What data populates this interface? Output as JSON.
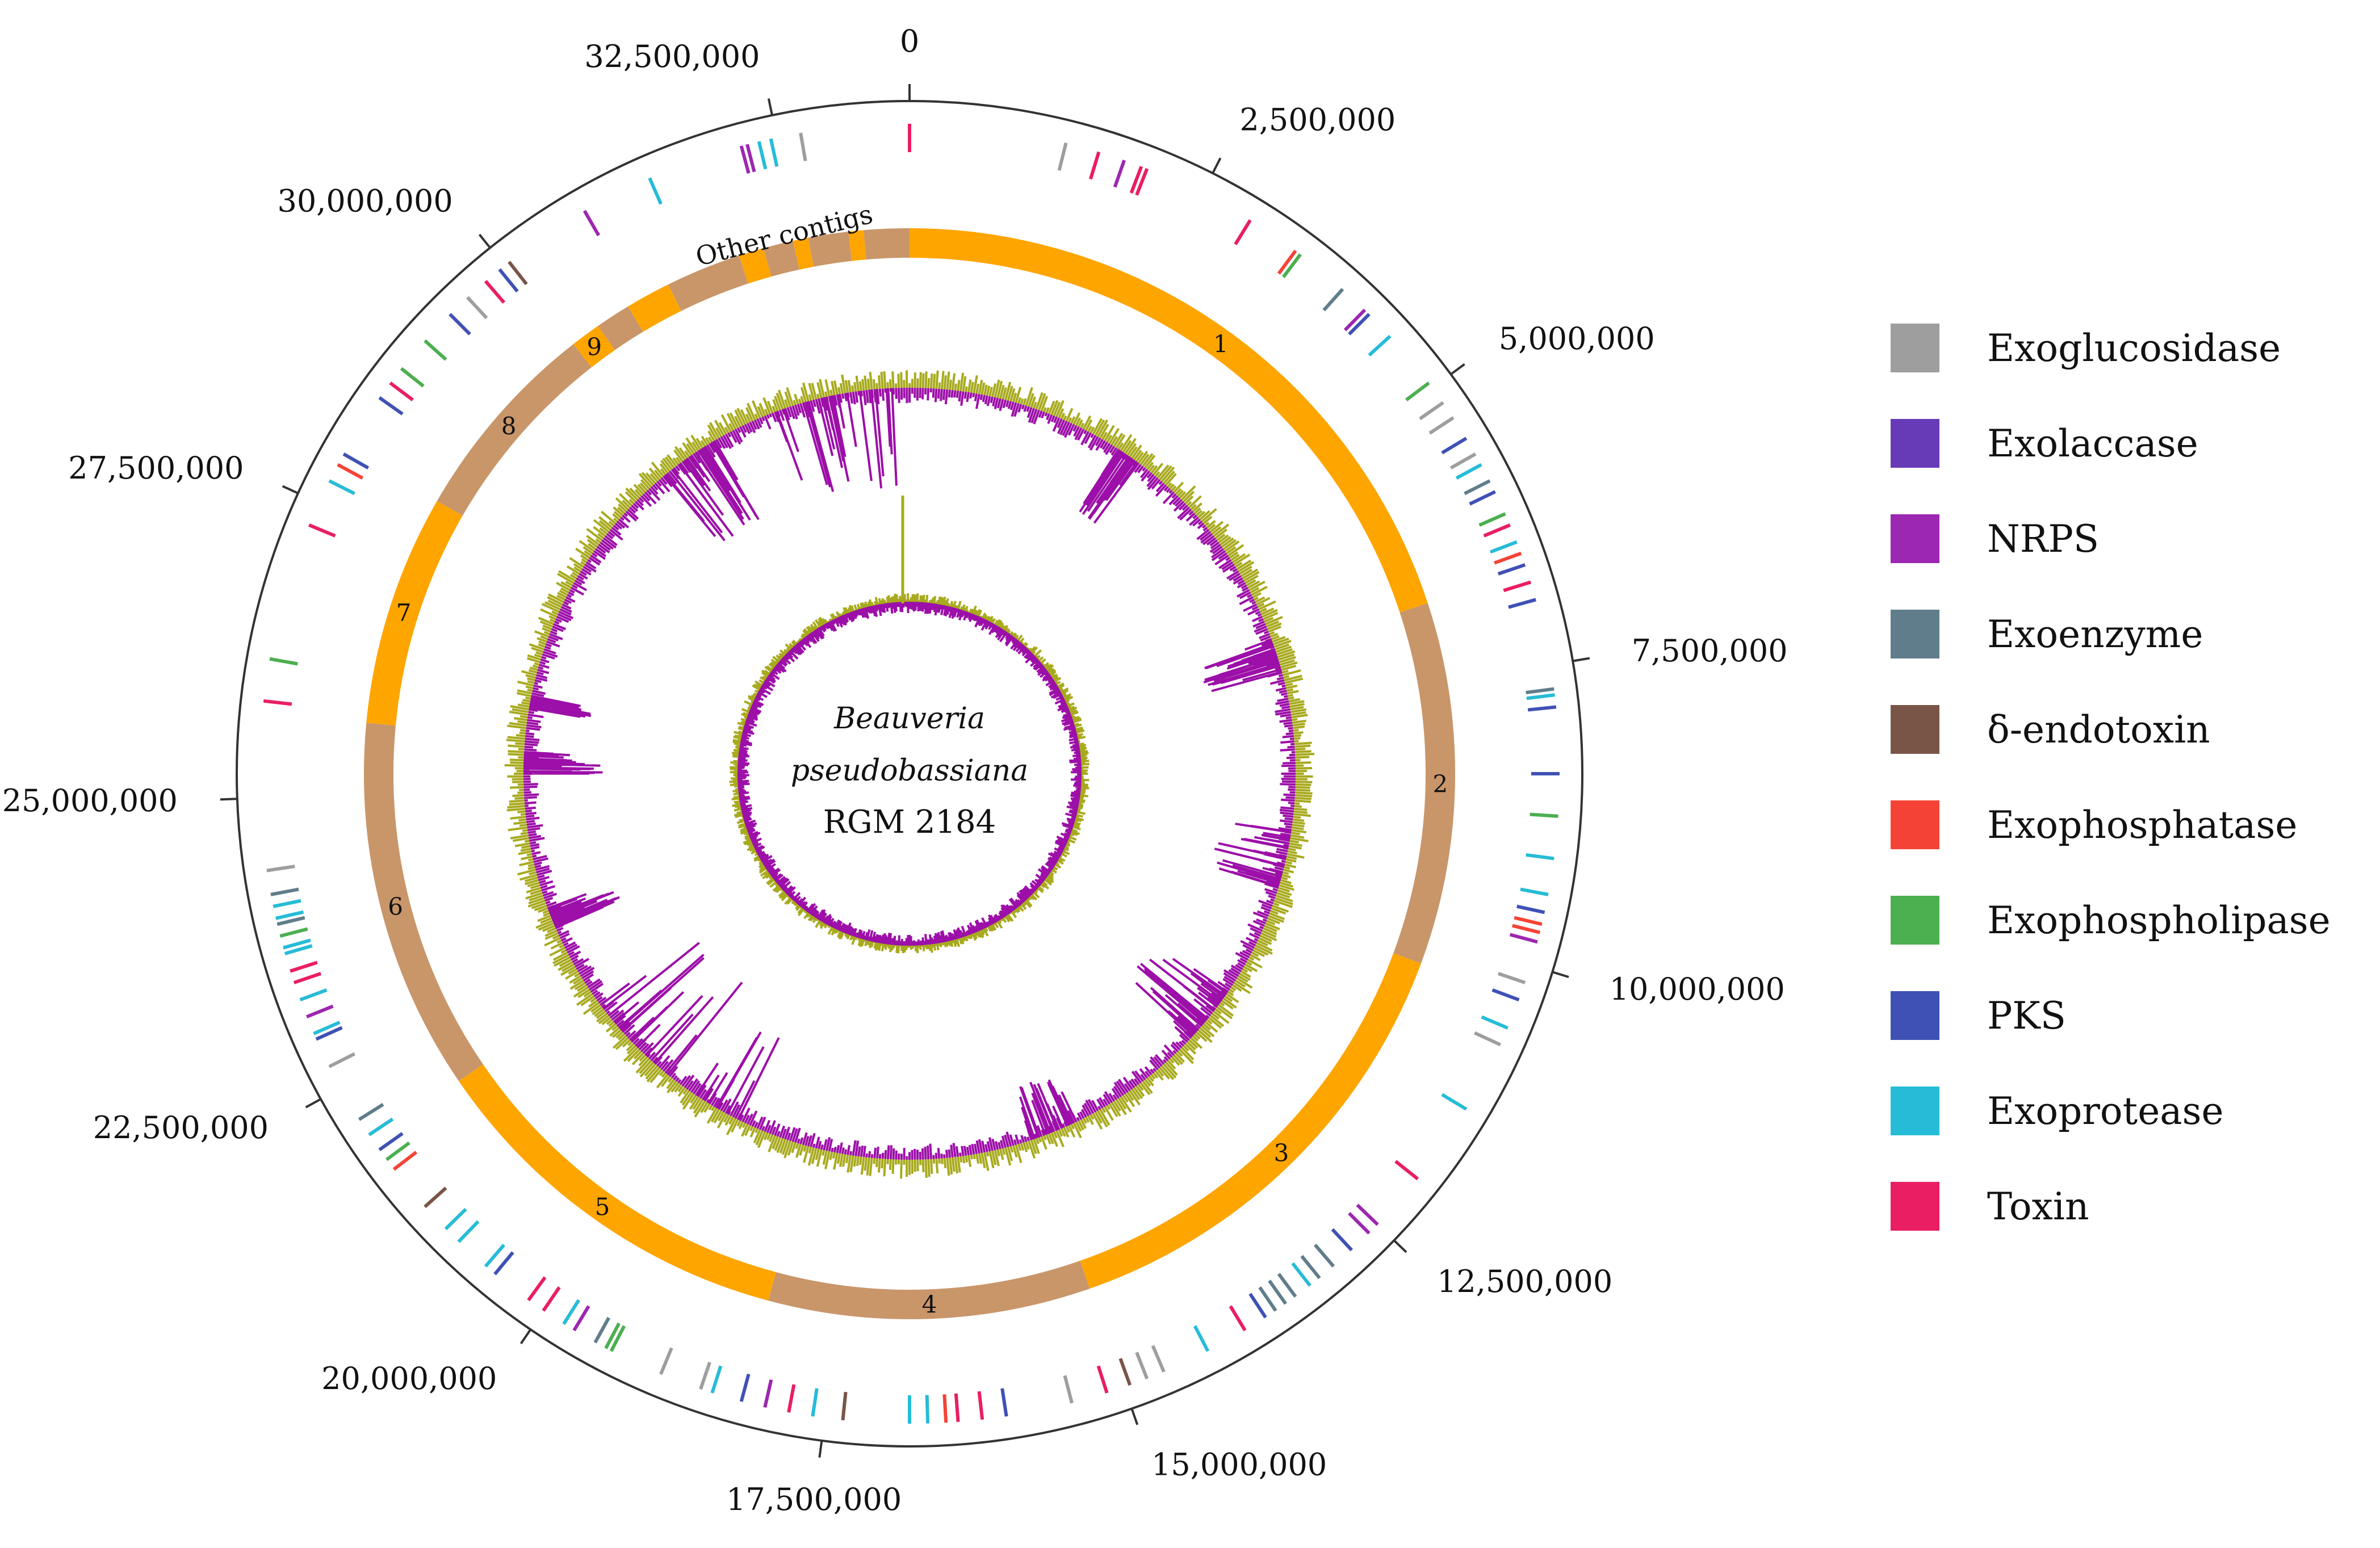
{
  "title": {
    "organism": "Beauveria",
    "species": "pseudobassiana",
    "strain": "RGM 2184"
  },
  "genome_length": 33600000,
  "ticks": [
    "0",
    "2,500,000",
    "5,000,000",
    "7,500,000",
    "10,000,000",
    "12,500,000",
    "15,000,000",
    "17,500,000",
    "20,000,000",
    "22,500,000",
    "25,000,000",
    "27,500,000",
    "30,000,000",
    "32,500,000"
  ],
  "tick_values": [
    0,
    2500000,
    5000000,
    7500000,
    10000000,
    12500000,
    15000000,
    17500000,
    20000000,
    22500000,
    25000000,
    27500000,
    30000000,
    32500000
  ],
  "other_contigs_label": "Other contigs",
  "contigs": [
    {
      "label": "1",
      "start": 0,
      "end": 6700000,
      "color": "#FFA500"
    },
    {
      "label": "2",
      "start": 6700000,
      "end": 10300000,
      "color": "#C9966A"
    },
    {
      "label": "3",
      "start": 10300000,
      "end": 15000000,
      "color": "#FFA500"
    },
    {
      "label": "4",
      "start": 15000000,
      "end": 18200000,
      "color": "#C9966A"
    },
    {
      "label": "5",
      "start": 18200000,
      "end": 22000000,
      "color": "#FFA500"
    },
    {
      "label": "6",
      "start": 22000000,
      "end": 25700000,
      "color": "#C9966A"
    },
    {
      "label": "7",
      "start": 25700000,
      "end": 28000000,
      "color": "#FFA500"
    },
    {
      "label": "8",
      "start": 28000000,
      "end": 30050000,
      "color": "#C9966A"
    },
    {
      "label": "9",
      "start": 30050000,
      "end": 30350000,
      "color": "#FFA500"
    },
    {
      "label": "",
      "start": 30350000,
      "end": 30700000,
      "color": "#C9966A"
    },
    {
      "label": "",
      "start": 30700000,
      "end": 31150000,
      "color": "#FFA500"
    },
    {
      "label": "",
      "start": 31150000,
      "end": 31900000,
      "color": "#C9966A"
    },
    {
      "label": "",
      "start": 31900000,
      "end": 32150000,
      "color": "#FFA500"
    },
    {
      "label": "",
      "start": 32150000,
      "end": 32450000,
      "color": "#C9966A"
    },
    {
      "label": "",
      "start": 32450000,
      "end": 32600000,
      "color": "#FFA500"
    },
    {
      "label": "",
      "start": 32600000,
      "end": 33000000,
      "color": "#C9966A"
    },
    {
      "label": "",
      "start": 33000000,
      "end": 33150000,
      "color": "#FFA500"
    },
    {
      "label": "",
      "start": 33150000,
      "end": 33600000,
      "color": "#C9966A"
    }
  ],
  "legend": [
    {
      "label": "Exoglucosidase",
      "color": "#9E9E9E"
    },
    {
      "label": "Exolaccase",
      "color": "#673AB7"
    },
    {
      "label": "NRPS",
      "color": "#9C27B0"
    },
    {
      "label": "Exoenzyme",
      "color": "#607D8B"
    },
    {
      "label": "δ-endotoxin",
      "color": "#795548"
    },
    {
      "label": "Exophosphatase",
      "color": "#F44336"
    },
    {
      "label": "Exophospholipase",
      "color": "#4CAF50"
    },
    {
      "label": "PKS",
      "color": "#3F51B5"
    },
    {
      "label": "Exoprotease",
      "color": "#26BCD7"
    },
    {
      "label": "Toxin",
      "color": "#E91E63"
    }
  ],
  "gene_features": [
    [
      0,
      9
    ],
    [
      1300000,
      0
    ],
    [
      1580000,
      9
    ],
    [
      1800000,
      2
    ],
    [
      2950000,
      9
    ],
    [
      2000000,
      9
    ],
    [
      1950000,
      9
    ],
    [
      3400000,
      5
    ],
    [
      3450000,
      6
    ],
    [
      3900000,
      3
    ],
    [
      4150000,
      2
    ],
    [
      4200000,
      7
    ],
    [
      4450000,
      8
    ],
    [
      4950000,
      6
    ],
    [
      5150000,
      0
    ],
    [
      5300000,
      0
    ],
    [
      5500000,
      7
    ],
    [
      5650000,
      0
    ],
    [
      5750000,
      8
    ],
    [
      5900000,
      3
    ],
    [
      6000000,
      7
    ],
    [
      6200000,
      6
    ],
    [
      6300000,
      9
    ],
    [
      6450000,
      8
    ],
    [
      6550000,
      5
    ],
    [
      6650000,
      7
    ],
    [
      6800000,
      9
    ],
    [
      6950000,
      7
    ],
    [
      7700000,
      3
    ],
    [
      7750000,
      8
    ],
    [
      7850000,
      7
    ],
    [
      8400000,
      7
    ],
    [
      8750000,
      6
    ],
    [
      9100000,
      8
    ],
    [
      9400000,
      8
    ],
    [
      9550000,
      7
    ],
    [
      9650000,
      5
    ],
    [
      9720000,
      5
    ],
    [
      9800000,
      2
    ],
    [
      10150000,
      0
    ],
    [
      10300000,
      7
    ],
    [
      10550000,
      8
    ],
    [
      10700000,
      0
    ],
    [
      11300000,
      8
    ],
    [
      12000000,
      9
    ],
    [
      12500000,
      2
    ],
    [
      12600000,
      2
    ],
    [
      12800000,
      7
    ],
    [
      13000000,
      3
    ],
    [
      13150000,
      3
    ],
    [
      13250000,
      8
    ],
    [
      13400000,
      3
    ],
    [
      13500000,
      3
    ],
    [
      13600000,
      3
    ],
    [
      13700000,
      7
    ],
    [
      13900000,
      9
    ],
    [
      14250000,
      8
    ],
    [
      14650000,
      0
    ],
    [
      14800000,
      0
    ],
    [
      14950000,
      4
    ],
    [
      15150000,
      9
    ],
    [
      15450000,
      0
    ],
    [
      16000000,
      7
    ],
    [
      16200000,
      9
    ],
    [
      16400000,
      9
    ],
    [
      16500000,
      5
    ],
    [
      16650000,
      8
    ],
    [
      16800000,
      8
    ],
    [
      17350000,
      4
    ],
    [
      17600000,
      8
    ],
    [
      17800000,
      9
    ],
    [
      18000000,
      2
    ],
    [
      18200000,
      7
    ],
    [
      18450000,
      8
    ],
    [
      18550000,
      0
    ],
    [
      18900000,
      0
    ],
    [
      19350000,
      6
    ],
    [
      19400000,
      6
    ],
    [
      19500000,
      3
    ],
    [
      19700000,
      2
    ],
    [
      19800000,
      8
    ],
    [
      20000000,
      9
    ],
    [
      20150000,
      9
    ],
    [
      20500000,
      7
    ],
    [
      20600000,
      8
    ],
    [
      20900000,
      8
    ],
    [
      21050000,
      8
    ],
    [
      21300000,
      4
    ],
    [
      21700000,
      5
    ],
    [
      21800000,
      6
    ],
    [
      21900000,
      7
    ],
    [
      22050000,
      8
    ],
    [
      22200000,
      3
    ],
    [
      22700000,
      0
    ],
    [
      22950000,
      7
    ],
    [
      23000000,
      8
    ],
    [
      23150000,
      2
    ],
    [
      23300000,
      8
    ],
    [
      23450000,
      9
    ],
    [
      23550000,
      9
    ],
    [
      23700000,
      8
    ],
    [
      23750000,
      8
    ],
    [
      23850000,
      6
    ],
    [
      23950000,
      3
    ],
    [
      24000000,
      8
    ],
    [
      24100000,
      8
    ],
    [
      24200000,
      3
    ],
    [
      24400000,
      0
    ],
    [
      25800000,
      9
    ],
    [
      26150000,
      6
    ],
    [
      27300000,
      9
    ],
    [
      27700000,
      8
    ],
    [
      27850000,
      5
    ],
    [
      27950000,
      7
    ],
    [
      28500000,
      7
    ],
    [
      28650000,
      9
    ],
    [
      28800000,
      6
    ],
    [
      29100000,
      6
    ],
    [
      29400000,
      7
    ],
    [
      29600000,
      0
    ],
    [
      29800000,
      9
    ],
    [
      29950000,
      7
    ],
    [
      30050000,
      4
    ],
    [
      30800000,
      2
    ],
    [
      31400000,
      8
    ],
    [
      32200000,
      2
    ],
    [
      32250000,
      2
    ],
    [
      32350000,
      8
    ],
    [
      32450000,
      8
    ],
    [
      32700000,
      0
    ]
  ]
}
